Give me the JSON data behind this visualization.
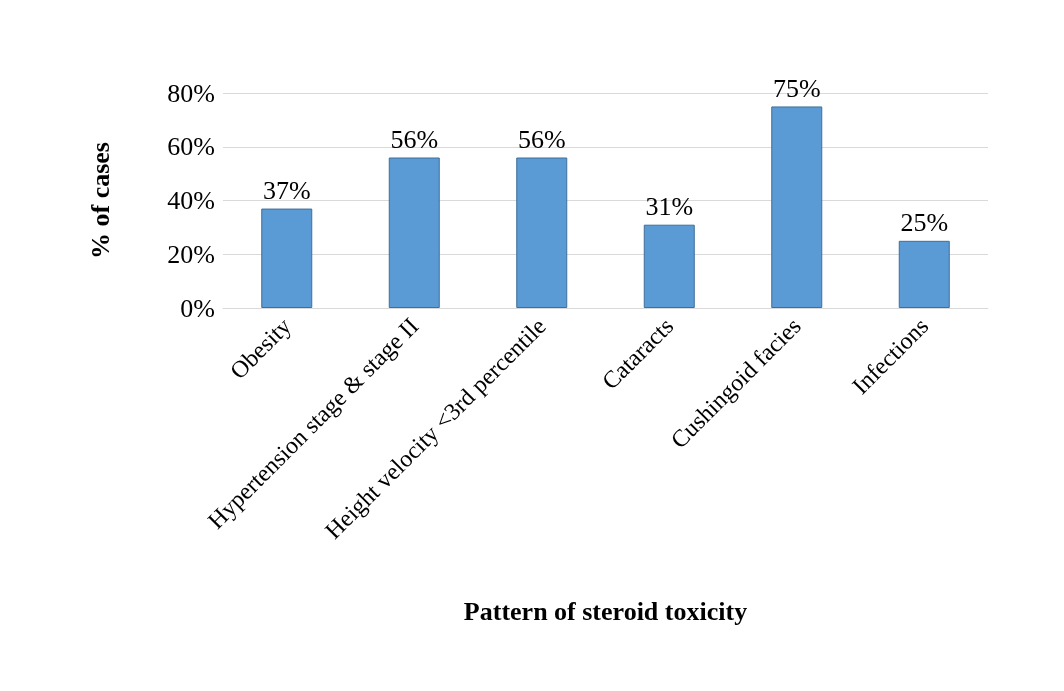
{
  "chart_data": {
    "type": "bar",
    "xlabel": "Pattern of steroid toxicity",
    "ylabel": "% of cases",
    "categories": [
      "Obesity",
      "Hypertension stage & stage II",
      "Height velocity <3rd percentile",
      "Cataracts",
      "Cushingoid facies",
      "Infections"
    ],
    "values": [
      37,
      56,
      56,
      31,
      75,
      25
    ],
    "value_labels": [
      "37%",
      "56%",
      "56%",
      "31%",
      "75%",
      "25%"
    ],
    "color": "#5b9bd5",
    "ylim": [
      0,
      80
    ],
    "yticks": [
      {
        "value": 0,
        "label": "0%"
      },
      {
        "value": 20,
        "label": "20%"
      },
      {
        "value": 40,
        "label": "40%"
      },
      {
        "value": 60,
        "label": "60%"
      },
      {
        "value": 80,
        "label": "80%"
      }
    ],
    "grid": "y"
  }
}
